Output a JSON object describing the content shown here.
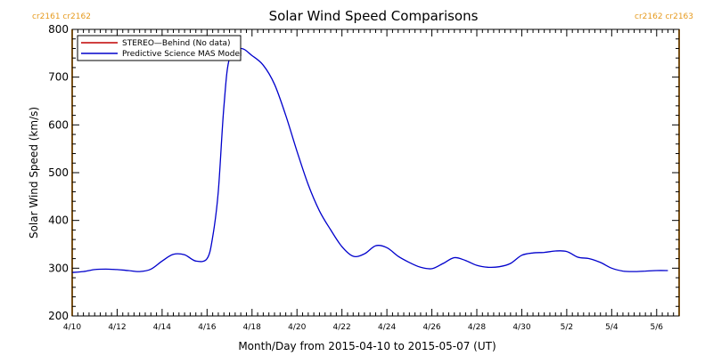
{
  "chart_data": {
    "type": "line",
    "title": "Solar Wind Speed Comparisons",
    "xlabel": "Month/Day from 2015-04-10 to 2015-05-07 (UT)",
    "ylabel": "Solar Wind Speed (km/s)",
    "xlim": [
      "2015-04-10",
      "2015-05-07"
    ],
    "ylim": [
      200,
      800
    ],
    "yticks": [
      200,
      300,
      400,
      500,
      600,
      700,
      800
    ],
    "xticks": [
      {
        "date": "2015-04-10",
        "label": "4/10"
      },
      {
        "date": "2015-04-12",
        "label": "4/12"
      },
      {
        "date": "2015-04-14",
        "label": "4/14"
      },
      {
        "date": "2015-04-16",
        "label": "4/16"
      },
      {
        "date": "2015-04-18",
        "label": "4/18"
      },
      {
        "date": "2015-04-20",
        "label": "4/20"
      },
      {
        "date": "2015-04-22",
        "label": "4/22"
      },
      {
        "date": "2015-04-24",
        "label": "4/24"
      },
      {
        "date": "2015-04-26",
        "label": "4/26"
      },
      {
        "date": "2015-04-28",
        "label": "4/28"
      },
      {
        "date": "2015-04-30",
        "label": "4/30"
      },
      {
        "date": "2015-05-02",
        "label": "5/2"
      },
      {
        "date": "2015-05-04",
        "label": "5/4"
      },
      {
        "date": "2015-05-06",
        "label": "5/6"
      }
    ],
    "carrington_markers": [
      {
        "date": "2015-04-10",
        "label": "cr2161 cr2162",
        "side": "left"
      },
      {
        "date": "2015-05-07",
        "label": "cr2162 cr2163",
        "side": "right"
      }
    ],
    "legend_position": "top-left",
    "series": [
      {
        "name": "STEREO—Behind (No data)",
        "color": "#c00000",
        "points": []
      },
      {
        "name": "Predictive Science MAS Model",
        "color": "#0000cc",
        "points": [
          [
            "2015-04-10T00:00",
            291
          ],
          [
            "2015-04-10T12:00",
            293
          ],
          [
            "2015-04-11T00:00",
            297
          ],
          [
            "2015-04-11T12:00",
            298
          ],
          [
            "2015-04-12T00:00",
            297
          ],
          [
            "2015-04-12T12:00",
            295
          ],
          [
            "2015-04-13T00:00",
            293
          ],
          [
            "2015-04-13T12:00",
            298
          ],
          [
            "2015-04-14T00:00",
            315
          ],
          [
            "2015-04-14T12:00",
            329
          ],
          [
            "2015-04-15T00:00",
            328
          ],
          [
            "2015-04-15T12:00",
            315
          ],
          [
            "2015-04-16T00:00",
            320
          ],
          [
            "2015-04-16T06:00",
            365
          ],
          [
            "2015-04-16T12:00",
            460
          ],
          [
            "2015-04-16T18:00",
            640
          ],
          [
            "2015-04-17T00:00",
            740
          ],
          [
            "2015-04-17T12:00",
            760
          ],
          [
            "2015-04-18T00:00",
            745
          ],
          [
            "2015-04-18T12:00",
            725
          ],
          [
            "2015-04-19T00:00",
            685
          ],
          [
            "2015-04-19T12:00",
            620
          ],
          [
            "2015-04-20T00:00",
            545
          ],
          [
            "2015-04-20T12:00",
            475
          ],
          [
            "2015-04-21T00:00",
            420
          ],
          [
            "2015-04-21T12:00",
            380
          ],
          [
            "2015-04-22T00:00",
            345
          ],
          [
            "2015-04-22T12:00",
            325
          ],
          [
            "2015-04-23T00:00",
            330
          ],
          [
            "2015-04-23T12:00",
            347
          ],
          [
            "2015-04-24T00:00",
            343
          ],
          [
            "2015-04-24T12:00",
            325
          ],
          [
            "2015-04-25T00:00",
            312
          ],
          [
            "2015-04-25T12:00",
            302
          ],
          [
            "2015-04-26T00:00",
            299
          ],
          [
            "2015-04-26T12:00",
            310
          ],
          [
            "2015-04-27T00:00",
            322
          ],
          [
            "2015-04-27T12:00",
            316
          ],
          [
            "2015-04-28T00:00",
            306
          ],
          [
            "2015-04-28T12:00",
            302
          ],
          [
            "2015-04-29T00:00",
            303
          ],
          [
            "2015-04-29T12:00",
            310
          ],
          [
            "2015-04-30T00:00",
            327
          ],
          [
            "2015-04-30T12:00",
            332
          ],
          [
            "2015-05-01T00:00",
            333
          ],
          [
            "2015-05-01T12:00",
            336
          ],
          [
            "2015-05-02T00:00",
            335
          ],
          [
            "2015-05-02T12:00",
            323
          ],
          [
            "2015-05-03T00:00",
            320
          ],
          [
            "2015-05-03T12:00",
            312
          ],
          [
            "2015-05-04T00:00",
            300
          ],
          [
            "2015-05-04T12:00",
            294
          ],
          [
            "2015-05-05T00:00",
            293
          ],
          [
            "2015-05-05T12:00",
            294
          ],
          [
            "2015-05-06T00:00",
            295
          ],
          [
            "2015-05-06T12:00",
            295
          ]
        ]
      }
    ]
  }
}
